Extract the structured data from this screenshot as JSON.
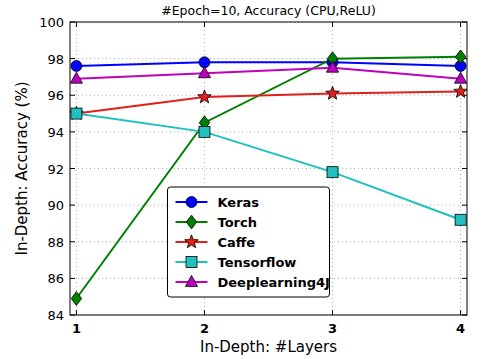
{
  "chart_data": {
    "type": "line",
    "title": "#Epoch=10, Accuracy (CPU,ReLU)",
    "x_label": "In-Depth: #Layers",
    "y_label": "In-Depth: Accuracy (%)",
    "x": [
      1,
      2,
      3,
      4
    ],
    "xlim": [
      0.95,
      4.05
    ],
    "xticks": [
      1,
      2,
      3,
      4
    ],
    "ylim": [
      84,
      100
    ],
    "yticks": [
      84,
      86,
      88,
      90,
      92,
      94,
      96,
      98,
      100
    ],
    "grid": true,
    "legend": "lower center",
    "series": [
      {
        "name": "Keras",
        "color": "#0000ff",
        "marker": "circle",
        "values": [
          97.6,
          97.8,
          97.8,
          97.6
        ]
      },
      {
        "name": "Torch",
        "color": "#008000",
        "marker": "diamond",
        "values": [
          84.9,
          94.5,
          98.0,
          98.1
        ]
      },
      {
        "name": "Caffe",
        "color": "#e0201a",
        "marker": "star",
        "values": [
          95.0,
          95.9,
          96.1,
          96.2
        ]
      },
      {
        "name": "Tensorflow",
        "color": "#20c0c0",
        "marker": "square",
        "values": [
          95.0,
          94.0,
          91.8,
          89.2
        ]
      },
      {
        "name": "Deeplearning4J",
        "color": "#bf00bf",
        "marker": "triangle",
        "values": [
          96.9,
          97.2,
          97.5,
          96.9
        ]
      }
    ]
  }
}
